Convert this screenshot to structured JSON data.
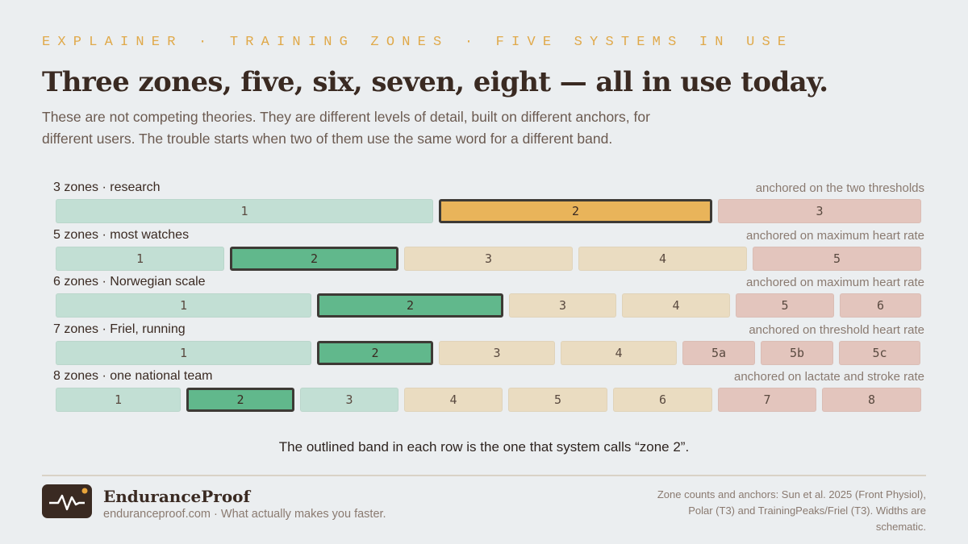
{
  "header": {
    "kicker": "EXPLAINER · TRAINING ZONES · FIVE SYSTEMS IN USE",
    "title": "Three zones, five, six, seven, eight — all in use today.",
    "intro": "These are not competing theories. They are different levels of detail, built on different anchors, for different users. The trouble starts when two of them use the same word for a different band."
  },
  "rows": [
    {
      "label": "3 zones · research",
      "anchor": "anchored on the two thresholds",
      "zones": [
        {
          "label": "1",
          "color": "#c2dfd4"
        },
        {
          "label": "2",
          "color": "#e9b45a"
        },
        {
          "label": "3",
          "color": "#e3c5bd"
        }
      ]
    },
    {
      "label": "5 zones · most watches",
      "anchor": "anchored on maximum heart rate",
      "zones": [
        {
          "label": "1",
          "color": "#c2dfd4"
        },
        {
          "label": "2",
          "color": "#61b88c"
        },
        {
          "label": "3",
          "color": "#eadcc1"
        },
        {
          "label": "4",
          "color": "#eadcc1"
        },
        {
          "label": "5",
          "color": "#e3c5bd"
        }
      ]
    },
    {
      "label": "6 zones · Norwegian scale",
      "anchor": "anchored on maximum heart rate",
      "zones": [
        {
          "label": "1",
          "color": "#c2dfd4"
        },
        {
          "label": "2",
          "color": "#61b88c"
        },
        {
          "label": "3",
          "color": "#eadcc1"
        },
        {
          "label": "4",
          "color": "#eadcc1"
        },
        {
          "label": "5",
          "color": "#e3c5bd"
        },
        {
          "label": "6",
          "color": "#e3c5bd"
        }
      ]
    },
    {
      "label": "7 zones · Friel, running",
      "anchor": "anchored on threshold heart rate",
      "zones": [
        {
          "label": "1",
          "color": "#c2dfd4"
        },
        {
          "label": "2",
          "color": "#61b88c"
        },
        {
          "label": "3",
          "color": "#eadcc1"
        },
        {
          "label": "4",
          "color": "#eadcc1"
        },
        {
          "label": "5a",
          "color": "#e3c5bd"
        },
        {
          "label": "5b",
          "color": "#e3c5bd"
        },
        {
          "label": "5c",
          "color": "#e3c5bd"
        }
      ]
    },
    {
      "label": "8 zones · one national team",
      "anchor": "anchored on lactate and stroke rate",
      "zones": [
        {
          "label": "1",
          "color": "#c2dfd4"
        },
        {
          "label": "2",
          "color": "#61b88c"
        },
        {
          "label": "3",
          "color": "#c2dfd4"
        },
        {
          "label": "4",
          "color": "#eadcc1"
        },
        {
          "label": "5",
          "color": "#eadcc1"
        },
        {
          "label": "6",
          "color": "#eadcc1"
        },
        {
          "label": "7",
          "color": "#e3c5bd"
        },
        {
          "label": "8",
          "color": "#e3c5bd"
        }
      ]
    }
  ],
  "caption": "The outlined band in each row is the one that system calls “zone 2”.",
  "footer": {
    "brand": "EnduranceProof",
    "tagline": "enduranceproof.com · What actually makes you faster.",
    "source": "Zone counts and anchors: Sun et al. 2025 (Front Physiol), Polar (T3) and TrainingPeaks/Friel (T3). Widths are schematic."
  }
}
